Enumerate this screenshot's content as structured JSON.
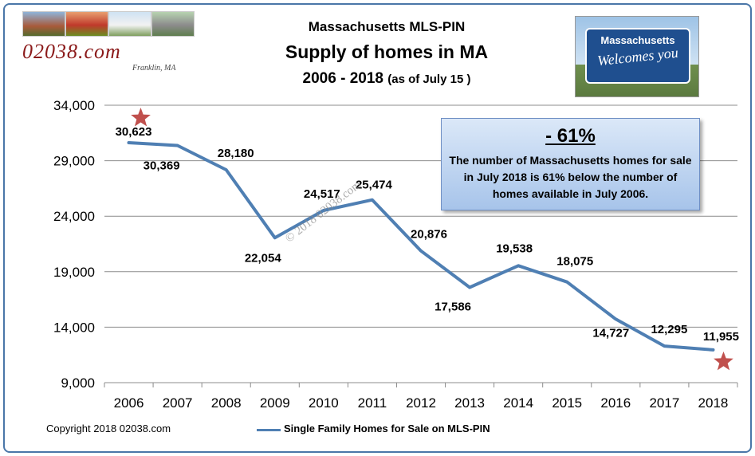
{
  "header": {
    "line1": "Massachusetts MLS-PIN",
    "line2": "Supply of homes in MA",
    "line3_main": "2006 - 2018",
    "line3_sub": "(as of July 15 )"
  },
  "logo": {
    "text": "02038.com",
    "subtext": "Franklin, MA",
    "icon": "site-logo-photos"
  },
  "sign": {
    "top_text": "Massachusetts",
    "script_text": "Welcomes you",
    "icon": "welcome-sign-photo"
  },
  "callout": {
    "big": "- 61%",
    "text": "The number of Massachusetts homes for sale in July 2018 is 61% below the number of homes available in July 2006."
  },
  "watermark": "© 2018 02038.com",
  "copyright": "Copyright 2018 02038.com",
  "colors": {
    "line": "#4f7fb3",
    "star": "#c0504d",
    "frame": "#4a76a8",
    "callout_fill": "#a7c4ea"
  },
  "chart_data": {
    "type": "line",
    "title": "Supply of homes in MA",
    "xlabel": "",
    "ylabel": "",
    "categories": [
      "2006",
      "2007",
      "2008",
      "2009",
      "2010",
      "2011",
      "2012",
      "2013",
      "2014",
      "2015",
      "2016",
      "2017",
      "2018"
    ],
    "series": [
      {
        "name": "Single Family Homes for Sale on MLS-PIN",
        "values": [
          30623,
          30369,
          28180,
          22054,
          24517,
          25474,
          20876,
          17586,
          19538,
          18075,
          14727,
          12295,
          11955
        ],
        "labels": [
          "30,623",
          "30,369",
          "28,180",
          "22,054",
          "24,517",
          "25,474",
          "20,876",
          "17,586",
          "19,538",
          "18,075",
          "14,727",
          "12,295",
          "11,955"
        ]
      }
    ],
    "ylim": [
      9000,
      34000
    ],
    "yticks": [
      9000,
      14000,
      19000,
      24000,
      29000,
      34000
    ],
    "ytick_labels": [
      "9,000",
      "14,000",
      "19,000",
      "24,000",
      "29,000",
      "34,000"
    ],
    "grid": true,
    "legend": "bottom",
    "markers": [
      "star at 2006 peak",
      "star at 2018 low"
    ]
  }
}
